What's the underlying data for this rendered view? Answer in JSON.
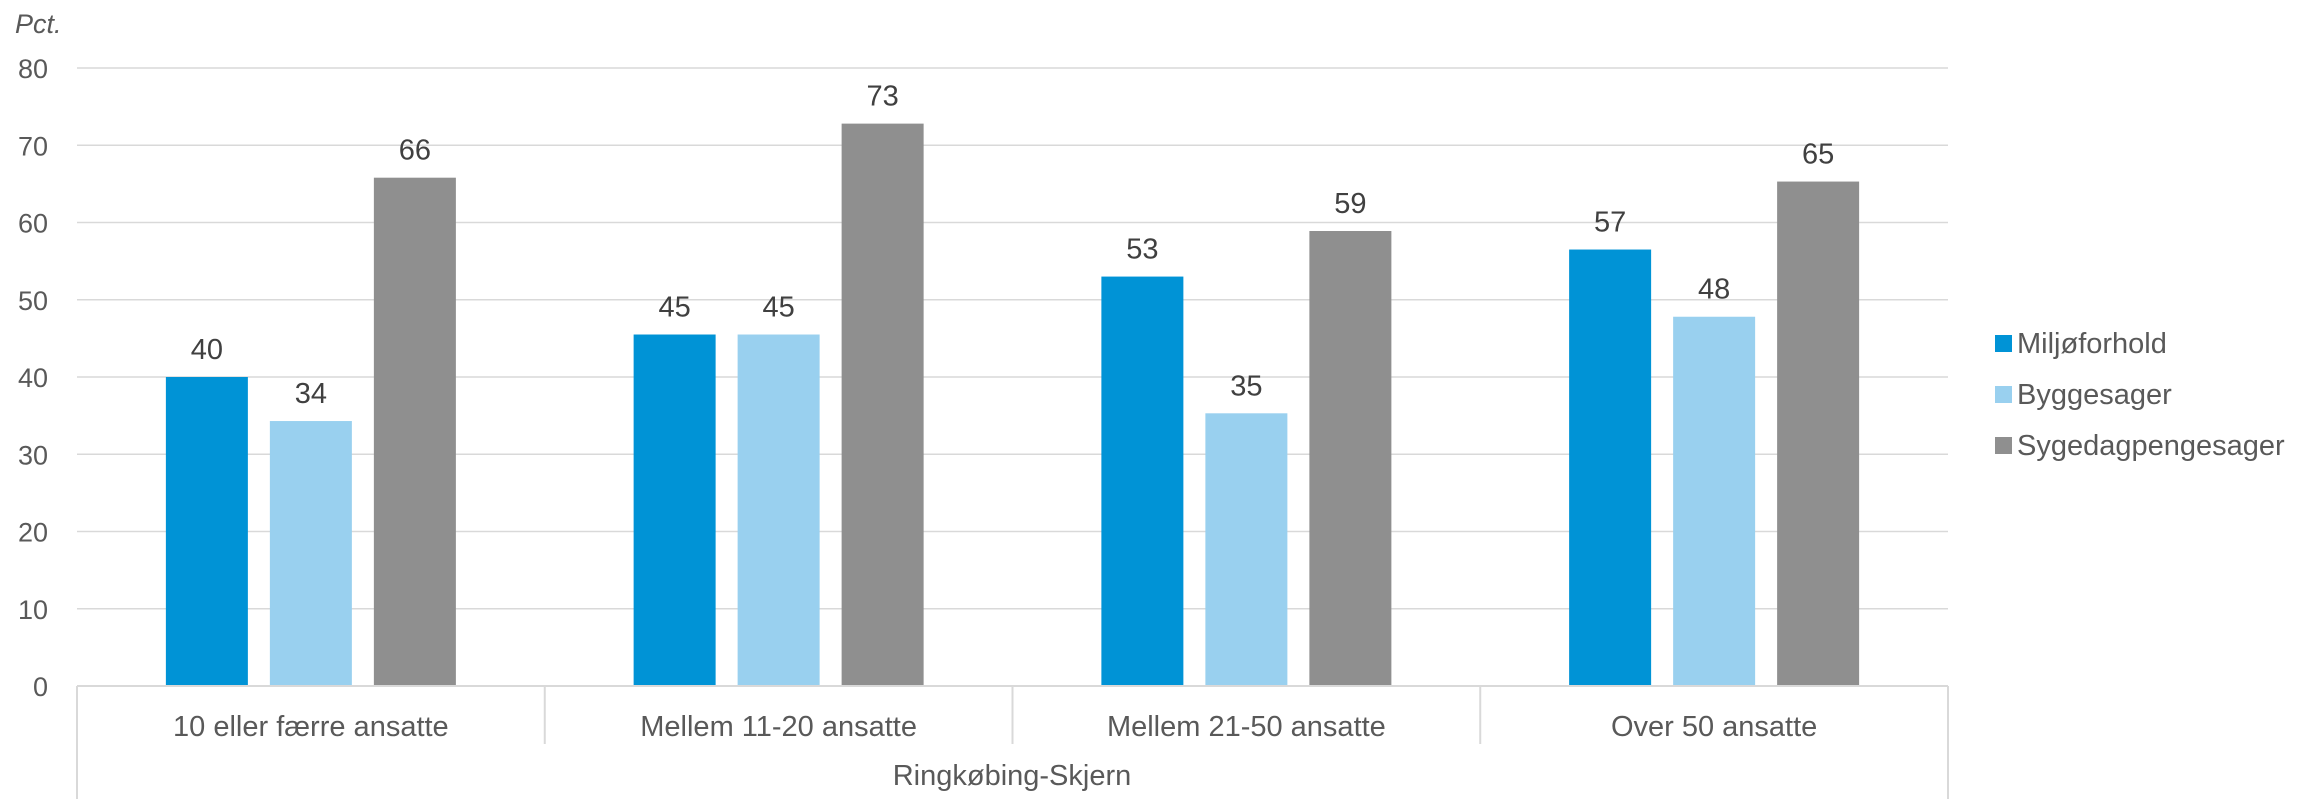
{
  "chart_data": {
    "type": "bar",
    "unit_label": "Pct.",
    "group_label": "Ringkøbing-Skjern",
    "categories": [
      "10 eller færre ansatte",
      "Mellem 11-20 ansatte",
      "Mellem 21-50 ansatte",
      "Over 50 ansatte"
    ],
    "series": [
      {
        "name": "Miljøforhold",
        "color": "#0093d6",
        "values": [
          40,
          45.5,
          53,
          56.5
        ],
        "labels": [
          "40",
          "45",
          "53",
          "57"
        ]
      },
      {
        "name": "Byggesager",
        "color": "#99d0ef",
        "values": [
          34.3,
          45.5,
          35.3,
          47.8
        ],
        "labels": [
          "34",
          "45",
          "35",
          "48"
        ]
      },
      {
        "name": "Sygedagpengesager",
        "color": "#8f8f8f",
        "values": [
          65.8,
          72.8,
          58.9,
          65.3
        ],
        "labels": [
          "66",
          "73",
          "59",
          "65"
        ]
      }
    ],
    "ylim": [
      0,
      80
    ],
    "yticks": [
      "0",
      "10",
      "20",
      "30",
      "40",
      "50",
      "60",
      "70",
      "80"
    ],
    "grid": true,
    "legend": "right"
  }
}
